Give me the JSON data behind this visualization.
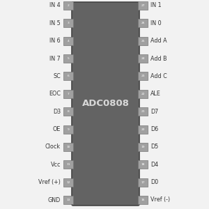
{
  "bg_color": "#f2f2f2",
  "chip_color": "#636363",
  "chip_label": "ADC0808",
  "chip_label_color": "#d8d8d8",
  "pin_box_color": "#a0a0a0",
  "pin_box_edge": "#777777",
  "pin_text_color": "#333333",
  "left_pins": [
    {
      "num": "2",
      "label": "IN 4"
    },
    {
      "num": "3",
      "label": "IN 5"
    },
    {
      "num": "4",
      "label": "IN 6"
    },
    {
      "num": "5",
      "label": "IN 7"
    },
    {
      "num": "6",
      "label": "SC"
    },
    {
      "num": "7",
      "label": "EOC"
    },
    {
      "num": "8",
      "label": "D3"
    },
    {
      "num": "9",
      "label": "OE"
    },
    {
      "num": "10",
      "label": "Clock"
    },
    {
      "num": "11",
      "label": "Vcc"
    },
    {
      "num": "12",
      "label": "Vref (+)"
    },
    {
      "num": "13",
      "label": "GND"
    }
  ],
  "right_pins": [
    {
      "num": "27",
      "label": "IN 1"
    },
    {
      "num": "26",
      "label": "IN 0"
    },
    {
      "num": "25",
      "label": "Add A"
    },
    {
      "num": "24",
      "label": "Add B"
    },
    {
      "num": "23",
      "label": "Add C"
    },
    {
      "num": "22",
      "label": "ALE"
    },
    {
      "num": "21",
      "label": "D7"
    },
    {
      "num": "20",
      "label": "D6"
    },
    {
      "num": "19",
      "label": "D5"
    },
    {
      "num": "18",
      "label": "D4"
    },
    {
      "num": "17",
      "label": "D0"
    },
    {
      "num": "16",
      "label": "Vref (-)"
    }
  ],
  "figsize": [
    3.0,
    3.0
  ],
  "dpi": 100
}
